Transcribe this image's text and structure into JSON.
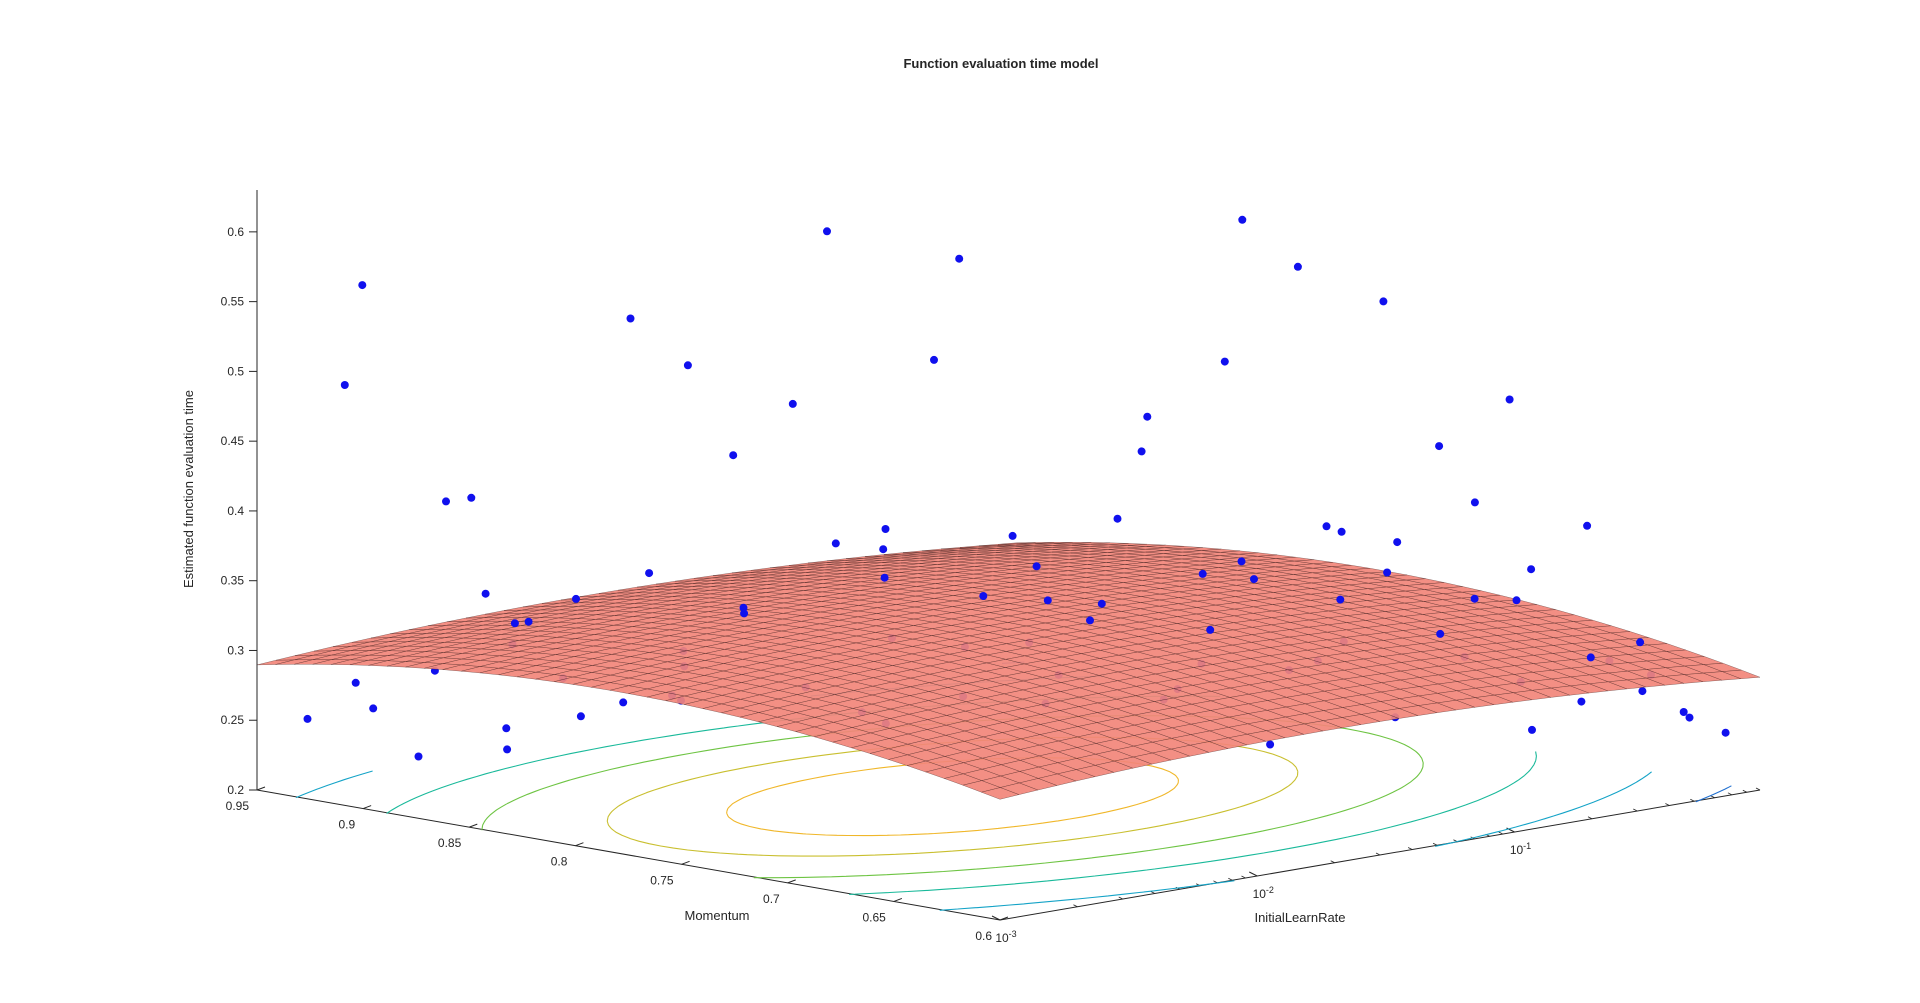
{
  "window": {
    "title": "Function evaluation time model"
  },
  "colors": {
    "surface_face": "#f2867a",
    "surface_edge": "#3b1a17",
    "points": "#1010ee",
    "axis": "#262626",
    "contour_levels": [
      "#2a2aa8",
      "#1f6fd0",
      "#14a3c7",
      "#19b99a",
      "#6ec443",
      "#c9bf2f",
      "#f0b72a"
    ]
  },
  "chart_data": {
    "type": "scatter",
    "subtype": "surface3d-with-contour-and-scatter",
    "title": "Function evaluation time model",
    "xlabel": "InitialLearnRate",
    "ylabel": "Momentum",
    "zlabel": "Estimated function evaluation time",
    "x_scale": "log",
    "x_ticks": [
      0.001,
      0.01,
      0.1
    ],
    "x_tick_labels": [
      {
        "base": "10",
        "exp": "-3"
      },
      {
        "base": "10",
        "exp": "-2"
      },
      {
        "base": "10",
        "exp": "-1"
      }
    ],
    "xlim": [
      0.001,
      0.9
    ],
    "y_ticks": [
      0.6,
      0.65,
      0.7,
      0.75,
      0.8,
      0.85,
      0.9,
      0.95
    ],
    "y_tick_labels": [
      "0.6",
      "0.65",
      "0.7",
      "0.75",
      "0.8",
      "0.85",
      "0.9",
      "0.95"
    ],
    "ylim": [
      0.6,
      0.95
    ],
    "z_ticks": [
      0.2,
      0.25,
      0.3,
      0.35,
      0.4,
      0.45,
      0.5,
      0.55,
      0.6
    ],
    "z_tick_labels": [
      "0.2",
      "0.25",
      "0.3",
      "0.35",
      "0.4",
      "0.45",
      "0.5",
      "0.55",
      "0.6"
    ],
    "zlim": [
      0.2,
      0.63
    ],
    "surface_model": {
      "form": "quadratic in log10(InitialLearnRate) and Momentum",
      "center": [
        0.02,
        0.78
      ],
      "peak": 0.325,
      "coef_log_lr": 0.0055,
      "coef_momentum": 0.9
    },
    "contour_levels": [
      0.27,
      0.285,
      0.295,
      0.305,
      0.312,
      0.318,
      0.322
    ],
    "series": [
      {
        "name": "",
        "type": "scatter",
        "points": [
          [
            0.0012,
            0.91,
            0.57
          ],
          [
            0.0015,
            0.93,
            0.49
          ],
          [
            0.0018,
            0.88,
            0.42
          ],
          [
            0.0021,
            0.9,
            0.41
          ],
          [
            0.0014,
            0.86,
            0.36
          ],
          [
            0.0017,
            0.85,
            0.34
          ],
          [
            0.0022,
            0.87,
            0.33
          ],
          [
            0.0026,
            0.88,
            0.31
          ],
          [
            0.0013,
            0.94,
            0.25
          ],
          [
            0.0016,
            0.92,
            0.26
          ],
          [
            0.002,
            0.94,
            0.27
          ],
          [
            0.0024,
            0.92,
            0.22
          ],
          [
            0.003,
            0.89,
            0.23
          ],
          [
            0.0019,
            0.9,
            0.29
          ],
          [
            0.0028,
            0.86,
            0.29
          ],
          [
            0.0035,
            0.84,
            0.55
          ],
          [
            0.004,
            0.82,
            0.52
          ],
          [
            0.0045,
            0.8,
            0.35
          ],
          [
            0.005,
            0.85,
            0.36
          ],
          [
            0.0038,
            0.87,
            0.34
          ],
          [
            0.0032,
            0.81,
            0.31
          ],
          [
            0.0042,
            0.83,
            0.28
          ],
          [
            0.0055,
            0.84,
            0.27
          ],
          [
            0.0048,
            0.88,
            0.25
          ],
          [
            0.0036,
            0.9,
            0.24
          ],
          [
            0.0065,
            0.78,
            0.62
          ],
          [
            0.007,
            0.8,
            0.49
          ],
          [
            0.006,
            0.82,
            0.45
          ],
          [
            0.0075,
            0.76,
            0.41
          ],
          [
            0.0085,
            0.79,
            0.39
          ],
          [
            0.009,
            0.77,
            0.37
          ],
          [
            0.008,
            0.83,
            0.33
          ],
          [
            0.0068,
            0.85,
            0.3
          ],
          [
            0.0095,
            0.81,
            0.28
          ],
          [
            0.011,
            0.78,
            0.26
          ],
          [
            0.0058,
            0.87,
            0.26
          ],
          [
            0.012,
            0.75,
            0.6
          ],
          [
            0.014,
            0.77,
            0.52
          ],
          [
            0.016,
            0.74,
            0.4
          ],
          [
            0.013,
            0.79,
            0.38
          ],
          [
            0.015,
            0.72,
            0.36
          ],
          [
            0.018,
            0.76,
            0.35
          ],
          [
            0.017,
            0.8,
            0.31
          ],
          [
            0.02,
            0.73,
            0.3
          ],
          [
            0.022,
            0.78,
            0.27
          ],
          [
            0.019,
            0.82,
            0.25
          ],
          [
            0.025,
            0.7,
            0.49
          ],
          [
            0.028,
            0.72,
            0.41
          ],
          [
            0.024,
            0.75,
            0.37
          ],
          [
            0.03,
            0.68,
            0.34
          ],
          [
            0.032,
            0.74,
            0.33
          ],
          [
            0.027,
            0.79,
            0.3
          ],
          [
            0.035,
            0.71,
            0.28
          ],
          [
            0.038,
            0.77,
            0.26
          ],
          [
            0.04,
            0.68,
            0.63
          ],
          [
            0.045,
            0.66,
            0.6
          ],
          [
            0.05,
            0.7,
            0.52
          ],
          [
            0.042,
            0.73,
            0.45
          ],
          [
            0.055,
            0.65,
            0.41
          ],
          [
            0.048,
            0.69,
            0.38
          ],
          [
            0.06,
            0.72,
            0.36
          ],
          [
            0.052,
            0.76,
            0.33
          ],
          [
            0.065,
            0.67,
            0.31
          ],
          [
            0.058,
            0.8,
            0.29
          ],
          [
            0.07,
            0.74,
            0.27
          ],
          [
            0.075,
            0.7,
            0.24
          ],
          [
            0.08,
            0.65,
            0.57
          ],
          [
            0.09,
            0.63,
            0.47
          ],
          [
            0.085,
            0.68,
            0.4
          ],
          [
            0.1,
            0.66,
            0.37
          ],
          [
            0.095,
            0.72,
            0.35
          ],
          [
            0.11,
            0.64,
            0.33
          ],
          [
            0.12,
            0.69,
            0.31
          ],
          [
            0.105,
            0.75,
            0.28
          ],
          [
            0.13,
            0.67,
            0.26
          ],
          [
            0.14,
            0.62,
            0.5
          ],
          [
            0.15,
            0.64,
            0.42
          ],
          [
            0.16,
            0.68,
            0.38
          ],
          [
            0.18,
            0.63,
            0.35
          ],
          [
            0.17,
            0.71,
            0.33
          ],
          [
            0.2,
            0.66,
            0.3
          ],
          [
            0.22,
            0.61,
            0.28
          ],
          [
            0.19,
            0.74,
            0.27
          ],
          [
            0.25,
            0.64,
            0.25
          ],
          [
            0.28,
            0.62,
            0.4
          ],
          [
            0.3,
            0.65,
            0.36
          ],
          [
            0.32,
            0.68,
            0.33
          ],
          [
            0.35,
            0.63,
            0.3
          ],
          [
            0.38,
            0.61,
            0.28
          ],
          [
            0.4,
            0.67,
            0.27
          ],
          [
            0.45,
            0.62,
            0.31
          ],
          [
            0.5,
            0.64,
            0.29
          ],
          [
            0.55,
            0.61,
            0.26
          ],
          [
            0.6,
            0.63,
            0.28
          ],
          [
            0.7,
            0.62,
            0.25
          ],
          [
            0.8,
            0.61,
            0.24
          ]
        ]
      }
    ]
  }
}
